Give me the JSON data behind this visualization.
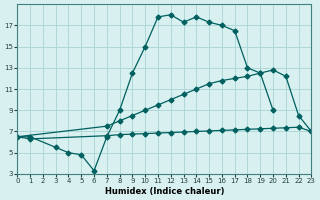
{
  "xlabel": "Humidex (Indice chaleur)",
  "bg_color": "#d8f0f0",
  "grid_color": "#b0d8d8",
  "line_color": "#006060",
  "ylim": [
    3,
    19
  ],
  "yticks": [
    3,
    5,
    7,
    9,
    11,
    13,
    15,
    17
  ],
  "xlim": [
    0,
    23
  ],
  "curve1_x": [
    0,
    1,
    3,
    4,
    5,
    6,
    7,
    8,
    9,
    10,
    11,
    12,
    13,
    14,
    15,
    16,
    17,
    18,
    19,
    20
  ],
  "curve1_y": [
    6.5,
    6.5,
    5.5,
    5.0,
    4.8,
    3.3,
    6.5,
    9.0,
    12.5,
    15.0,
    17.8,
    18.0,
    17.3,
    17.8,
    17.3,
    17.0,
    16.5,
    13.0,
    12.5,
    9.0
  ],
  "curve2_x": [
    0,
    7,
    8,
    9,
    10,
    11,
    12,
    13,
    14,
    15,
    16,
    17,
    18,
    19,
    20,
    21,
    22,
    23
  ],
  "curve2_y": [
    6.5,
    7.5,
    8.0,
    8.5,
    9.0,
    9.5,
    10.0,
    10.5,
    11.0,
    11.5,
    11.8,
    12.0,
    12.2,
    12.5,
    12.8,
    12.2,
    8.5,
    7.0
  ],
  "curve3_x": [
    0,
    1,
    7,
    8,
    9,
    10,
    11,
    12,
    13,
    14,
    15,
    16,
    17,
    18,
    19,
    20,
    21,
    22,
    23
  ],
  "curve3_y": [
    6.5,
    6.3,
    6.6,
    6.7,
    6.75,
    6.8,
    6.85,
    6.9,
    6.95,
    7.0,
    7.05,
    7.1,
    7.15,
    7.2,
    7.25,
    7.3,
    7.35,
    7.4,
    7.0
  ]
}
